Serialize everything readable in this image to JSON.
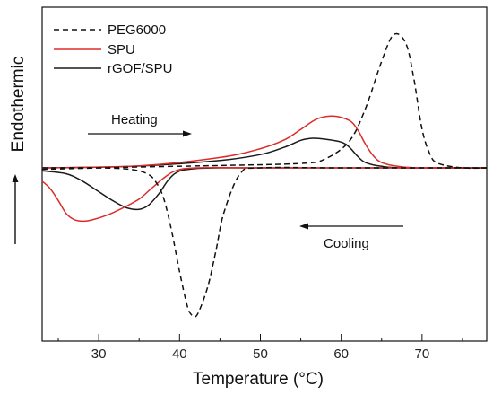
{
  "chart_data": {
    "type": "line",
    "xlabel": "Temperature (°C)",
    "ylabel": "Endothermic",
    "xlim": [
      23,
      78
    ],
    "xticks": [
      30,
      40,
      50,
      60,
      70
    ],
    "y_ticks_shown": false,
    "grid": false,
    "legend_position": "top-left",
    "annotations": [
      {
        "text": "Heating",
        "arrow": "right"
      },
      {
        "text": "Cooling",
        "arrow": "left"
      }
    ],
    "series": [
      {
        "name": "PEG6000",
        "color": "#111111",
        "style": "dashed",
        "segments": [
          {
            "label": "heating",
            "points": [
              [
                23,
                -0.05
              ],
              [
                35,
                0.03
              ],
              [
                45,
                0.08
              ],
              [
                55,
                0.15
              ],
              [
                58,
                0.3
              ],
              [
                61,
                0.9
              ],
              [
                63,
                2.0
              ],
              [
                65,
                3.6
              ],
              [
                66.5,
                4.5
              ],
              [
                68,
                4.2
              ],
              [
                69,
                3.0
              ],
              [
                70,
                1.3
              ],
              [
                71,
                0.45
              ],
              [
                72,
                0.15
              ],
              [
                75,
                0
              ],
              [
                78,
                0
              ]
            ]
          },
          {
            "label": "cooling",
            "points": [
              [
                78,
                0
              ],
              [
                60,
                0
              ],
              [
                50,
                0
              ],
              [
                47.5,
                -0.2
              ],
              [
                45.5,
                -1.5
              ],
              [
                44.5,
                -2.8
              ],
              [
                43.5,
                -4.0
              ],
              [
                42.3,
                -4.9
              ],
              [
                41.7,
                -5.0
              ],
              [
                41,
                -4.7
              ],
              [
                40,
                -3.5
              ],
              [
                39,
                -2.1
              ],
              [
                38,
                -1.0
              ],
              [
                37,
                -0.45
              ],
              [
                36,
                -0.2
              ],
              [
                34,
                -0.05
              ],
              [
                30,
                0
              ],
              [
                23,
                0
              ]
            ]
          }
        ]
      },
      {
        "name": "SPU",
        "color": "#dd2b2b",
        "style": "solid",
        "segments": [
          {
            "label": "heating",
            "points": [
              [
                23,
                0
              ],
              [
                35,
                0.07
              ],
              [
                45,
                0.35
              ],
              [
                50,
                0.65
              ],
              [
                53,
                0.95
              ],
              [
                55,
                1.3
              ],
              [
                57,
                1.65
              ],
              [
                59,
                1.75
              ],
              [
                61,
                1.6
              ],
              [
                62,
                1.3
              ],
              [
                63,
                0.8
              ],
              [
                64,
                0.4
              ],
              [
                65,
                0.18
              ],
              [
                67,
                0.05
              ],
              [
                70,
                0
              ],
              [
                78,
                0
              ]
            ]
          },
          {
            "label": "cooling",
            "points": [
              [
                23,
                -0.45
              ],
              [
                24,
                -0.7
              ],
              [
                25,
                -1.1
              ],
              [
                26,
                -1.55
              ],
              [
                27,
                -1.75
              ],
              [
                28,
                -1.8
              ],
              [
                29,
                -1.77
              ],
              [
                31,
                -1.6
              ],
              [
                33,
                -1.35
              ],
              [
                35,
                -1.05
              ],
              [
                36.5,
                -0.7
              ],
              [
                38,
                -0.35
              ],
              [
                39.5,
                -0.1
              ],
              [
                42,
                0
              ],
              [
                50,
                0
              ],
              [
                60,
                0
              ],
              [
                78,
                0
              ]
            ]
          }
        ]
      },
      {
        "name": "rGOF/SPU",
        "color": "#1a1a1a",
        "style": "solid",
        "segments": [
          {
            "label": "heating",
            "points": [
              [
                23,
                0
              ],
              [
                35,
                0.06
              ],
              [
                45,
                0.25
              ],
              [
                50,
                0.45
              ],
              [
                53,
                0.7
              ],
              [
                55,
                0.93
              ],
              [
                56.5,
                1.0
              ],
              [
                58,
                0.97
              ],
              [
                60,
                0.87
              ],
              [
                61,
                0.7
              ],
              [
                62,
                0.4
              ],
              [
                63,
                0.18
              ],
              [
                65,
                0.05
              ],
              [
                68,
                0
              ],
              [
                78,
                0
              ]
            ]
          },
          {
            "label": "cooling",
            "points": [
              [
                23,
                -0.1
              ],
              [
                26,
                -0.2
              ],
              [
                28,
                -0.45
              ],
              [
                30,
                -0.8
              ],
              [
                32,
                -1.15
              ],
              [
                33.5,
                -1.35
              ],
              [
                35,
                -1.4
              ],
              [
                36.2,
                -1.25
              ],
              [
                37.5,
                -0.85
              ],
              [
                38.5,
                -0.45
              ],
              [
                39.5,
                -0.18
              ],
              [
                41,
                -0.05
              ],
              [
                45,
                0
              ],
              [
                60,
                0
              ],
              [
                78,
                0
              ]
            ]
          }
        ]
      }
    ]
  }
}
